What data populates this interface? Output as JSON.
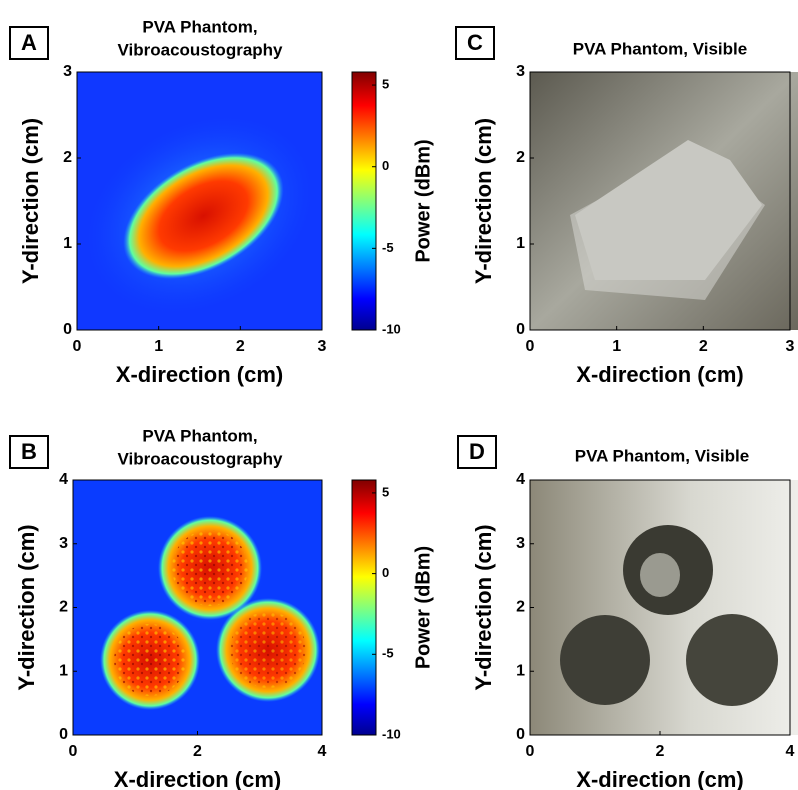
{
  "chart_data": [
    {
      "type": "heatmap",
      "panel": "A",
      "title": [
        "PVA Phantom,",
        "Vibroacoustography"
      ],
      "xlabel": "X-direction (cm)",
      "ylabel": "Y-direction (cm)",
      "xlim": [
        0,
        3
      ],
      "ylim": [
        0,
        3
      ],
      "xticks": [
        0,
        1,
        2,
        3
      ],
      "yticks": [
        0,
        1,
        2,
        3
      ],
      "colorbar": {
        "label": "Power (dBm)",
        "lim": [
          -10,
          5.8
        ],
        "ticks": [
          -10,
          -5,
          0,
          5
        ]
      }
    },
    {
      "type": "heatmap",
      "panel": "B",
      "title": [
        "PVA Phantom,",
        "Vibroacoustography"
      ],
      "xlabel": "X-direction (cm)",
      "ylabel": "Y-direction (cm)",
      "xlim": [
        0,
        4
      ],
      "ylim": [
        0,
        4
      ],
      "xticks": [
        0,
        2,
        4
      ],
      "yticks": [
        0,
        1,
        2,
        3,
        4
      ],
      "colorbar": {
        "label": "Power (dBm)",
        "lim": [
          -10,
          5.8
        ],
        "ticks": [
          -10,
          -5,
          0,
          5
        ]
      }
    },
    {
      "type": "image",
      "panel": "C",
      "title": [
        "PVA Phantom, Visible"
      ],
      "xlabel": "X-direction (cm)",
      "ylabel": "Y-direction (cm)",
      "xlim": [
        0,
        3
      ],
      "ylim": [
        0,
        3
      ],
      "xticks": [
        0,
        1,
        2,
        3
      ],
      "yticks": [
        0,
        1,
        2,
        3
      ]
    },
    {
      "type": "image",
      "panel": "D",
      "title": [
        "PVA Phantom, Visible"
      ],
      "xlabel": "X-direction (cm)",
      "ylabel": "Y-direction (cm)",
      "xlim": [
        0,
        4
      ],
      "ylim": [
        0,
        4
      ],
      "xticks": [
        0,
        2,
        4
      ],
      "yticks": [
        0,
        1,
        2,
        3,
        4
      ]
    }
  ]
}
